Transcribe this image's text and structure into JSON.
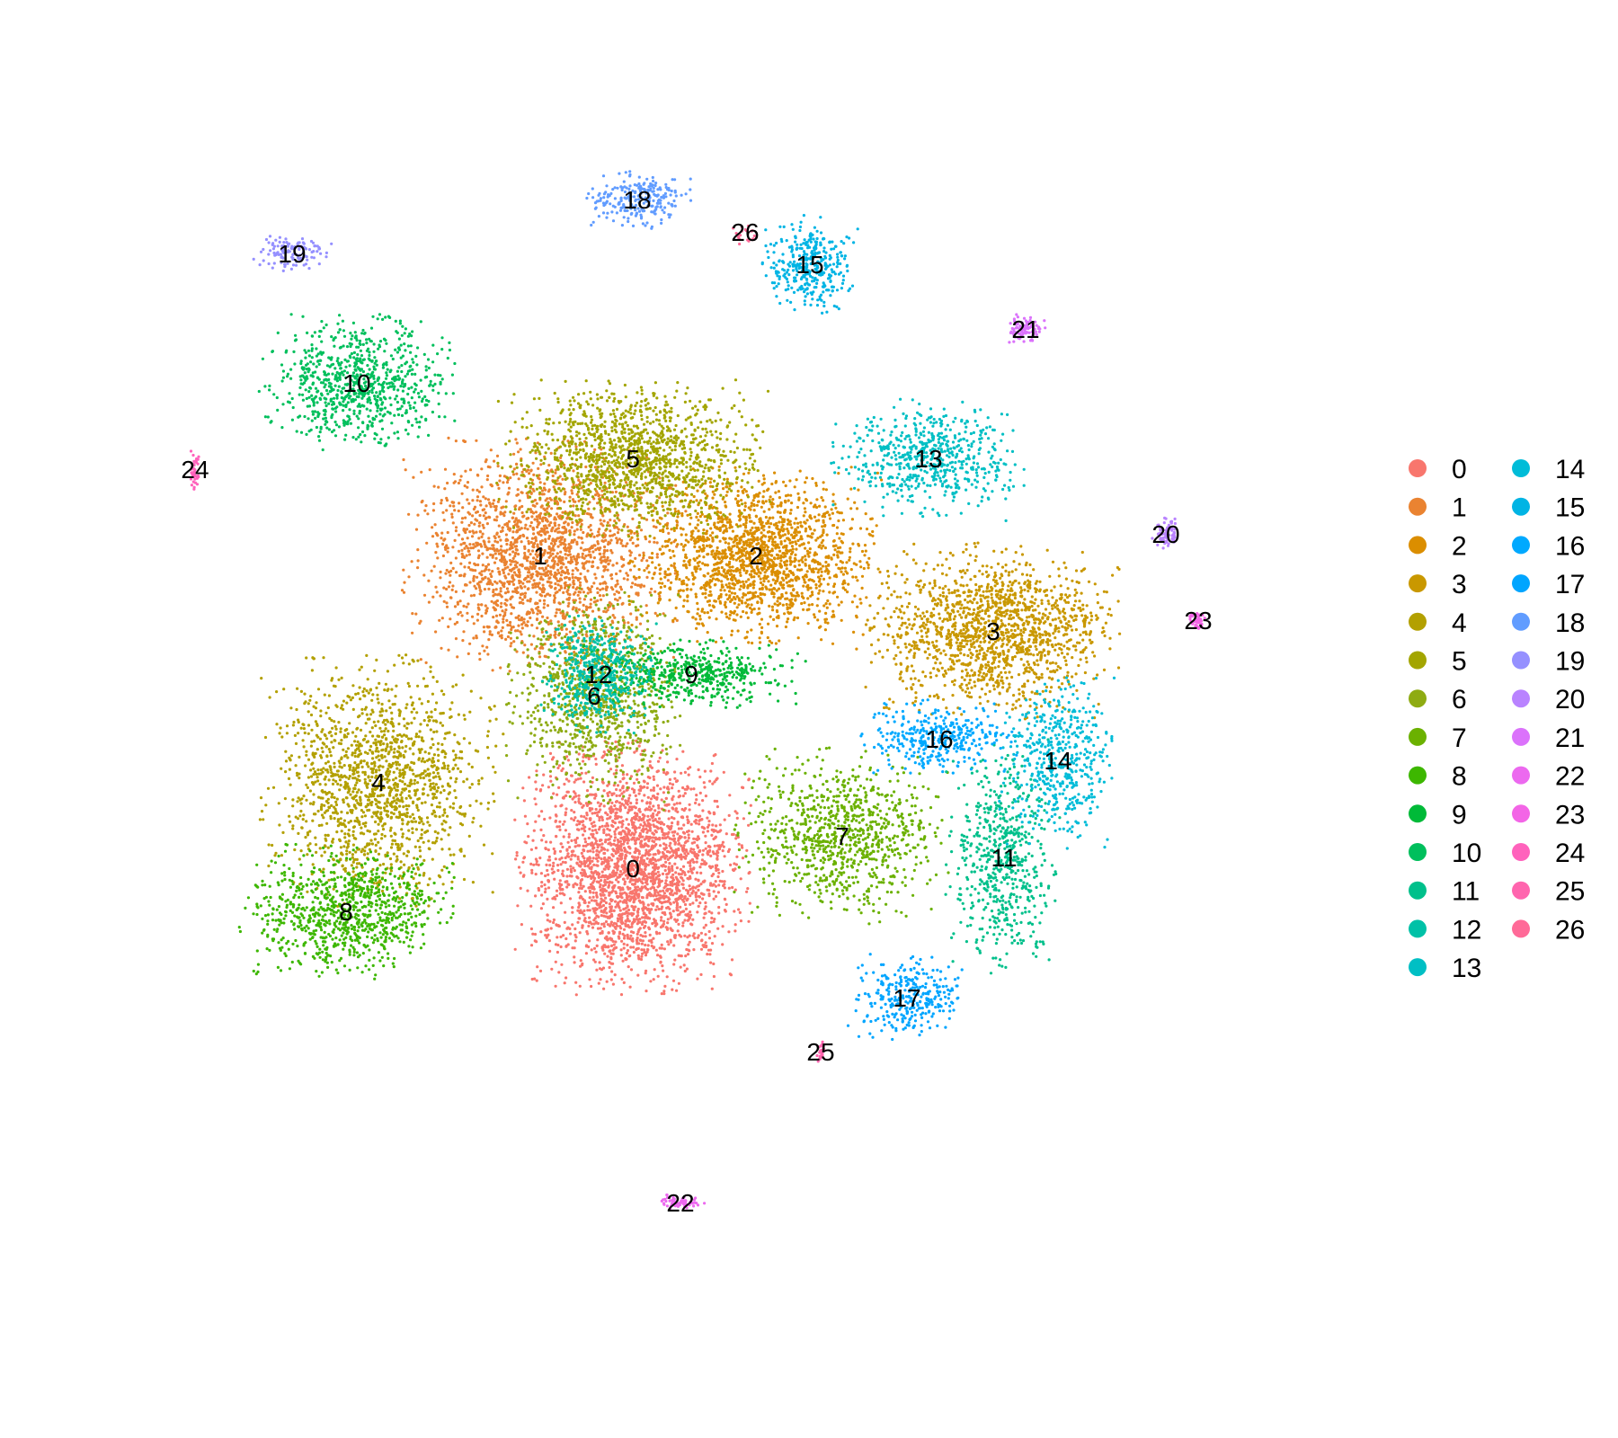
{
  "chart_data": {
    "type": "scatter",
    "title": "",
    "xlabel": "",
    "ylabel": "",
    "axes_visible": false,
    "grid": false,
    "legend_placement": "right",
    "legend_columns": 2,
    "clusters": [
      {
        "id": "0",
        "color": "#F8766D"
      },
      {
        "id": "1",
        "color": "#EA8331"
      },
      {
        "id": "2",
        "color": "#DB8E00"
      },
      {
        "id": "3",
        "color": "#C99800"
      },
      {
        "id": "4",
        "color": "#B3A000"
      },
      {
        "id": "5",
        "color": "#A3A500"
      },
      {
        "id": "6",
        "color": "#8EAB12"
      },
      {
        "id": "7",
        "color": "#6BB100"
      },
      {
        "id": "8",
        "color": "#3DB700"
      },
      {
        "id": "9",
        "color": "#00BA38"
      },
      {
        "id": "10",
        "color": "#00BF5C"
      },
      {
        "id": "11",
        "color": "#00C08B"
      },
      {
        "id": "12",
        "color": "#00C1A7"
      },
      {
        "id": "13",
        "color": "#00BFC4"
      },
      {
        "id": "14",
        "color": "#00BCD8"
      },
      {
        "id": "15",
        "color": "#00B4E4"
      },
      {
        "id": "16",
        "color": "#00A9FF"
      },
      {
        "id": "17",
        "color": "#00A5FF"
      },
      {
        "id": "18",
        "color": "#619CFF"
      },
      {
        "id": "19",
        "color": "#9590FF"
      },
      {
        "id": "20",
        "color": "#B983FF"
      },
      {
        "id": "21",
        "color": "#DB72FB"
      },
      {
        "id": "22",
        "color": "#EC69EF"
      },
      {
        "id": "23",
        "color": "#F365E6"
      },
      {
        "id": "24",
        "color": "#FF62BC"
      },
      {
        "id": "25",
        "color": "#FF65AE"
      },
      {
        "id": "26",
        "color": "#FF6A98"
      }
    ],
    "cluster_centers_data": [
      {
        "id": "0",
        "x": 0.8,
        "y": -8.5
      },
      {
        "id": "1",
        "x": -3.5,
        "y": 6.0
      },
      {
        "id": "2",
        "x": 6.5,
        "y": 6.0
      },
      {
        "id": "3",
        "x": 17.5,
        "y": 2.5
      },
      {
        "id": "4",
        "x": -11.0,
        "y": -4.5
      },
      {
        "id": "5",
        "x": 0.8,
        "y": 10.5
      },
      {
        "id": "6",
        "x": -1.0,
        "y": -0.5
      },
      {
        "id": "7",
        "x": 10.5,
        "y": -7.0
      },
      {
        "id": "8",
        "x": -12.5,
        "y": -10.5
      },
      {
        "id": "9",
        "x": 3.5,
        "y": 0.5
      },
      {
        "id": "10",
        "x": -12.0,
        "y": 14.0
      },
      {
        "id": "11",
        "x": 18.0,
        "y": -8.0
      },
      {
        "id": "12",
        "x": -0.8,
        "y": 0.5
      },
      {
        "id": "13",
        "x": 14.5,
        "y": 10.5
      },
      {
        "id": "14",
        "x": 20.5,
        "y": -3.5
      },
      {
        "id": "15",
        "x": 9.0,
        "y": 19.5
      },
      {
        "id": "16",
        "x": 15.0,
        "y": -2.5
      },
      {
        "id": "17",
        "x": 13.5,
        "y": -14.5
      },
      {
        "id": "18",
        "x": 1.0,
        "y": 22.5
      },
      {
        "id": "19",
        "x": -15.0,
        "y": 20.0
      },
      {
        "id": "20",
        "x": 25.5,
        "y": 7.0
      },
      {
        "id": "21",
        "x": 19.0,
        "y": 16.5
      },
      {
        "id": "22",
        "x": 3.0,
        "y": -24.0
      },
      {
        "id": "23",
        "x": 27.0,
        "y": 3.0
      },
      {
        "id": "24",
        "x": -19.5,
        "y": 10.0
      },
      {
        "id": "25",
        "x": 9.5,
        "y": -17.0
      },
      {
        "id": "26",
        "x": 6.0,
        "y": 21.0
      }
    ]
  }
}
